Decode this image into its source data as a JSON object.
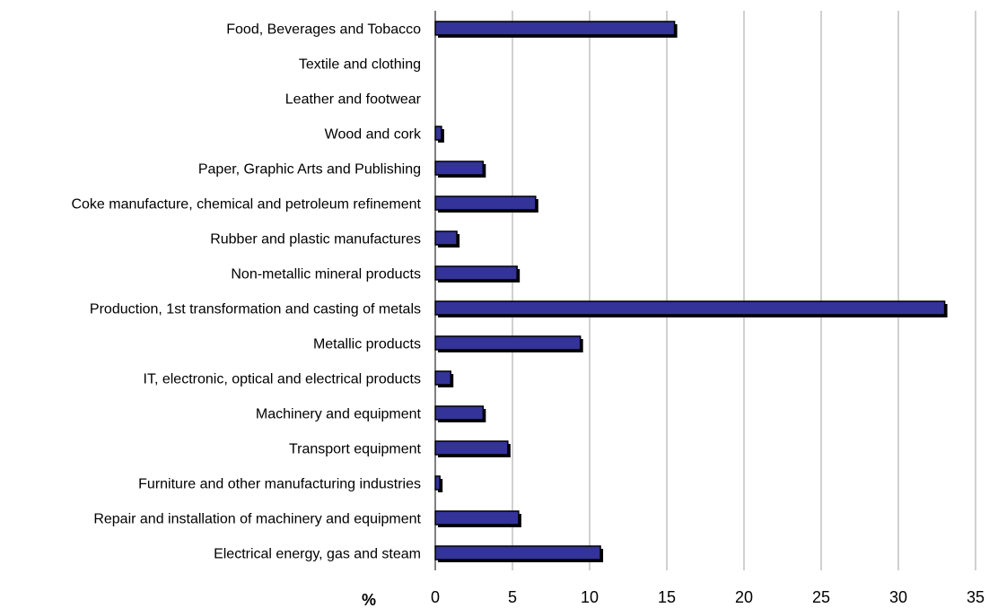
{
  "chart_data": {
    "type": "bar",
    "orientation": "horizontal",
    "categories": [
      "Food, Beverages and Tobacco",
      "Textile and clothing",
      "Leather and footwear",
      "Wood and cork",
      "Paper, Graphic Arts and Publishing",
      "Coke manufacture, chemical and petroleum refinement",
      "Rubber and plastic manufactures",
      "Non-metallic mineral products",
      "Production, 1st transformation and casting of metals",
      "Metallic products",
      "IT, electronic, optical and electrical products",
      "Machinery and equipment",
      "Transport equipment",
      "Furniture and other manufacturing industries",
      "Repair and installation of machinery and equipment",
      "Electrical energy, gas and steam"
    ],
    "values": [
      15.5,
      0,
      0,
      0.4,
      3.1,
      6.5,
      1.4,
      5.3,
      33.0,
      9.4,
      1.0,
      3.1,
      4.7,
      0.3,
      5.4,
      10.7
    ],
    "xlabel": "%",
    "xlim": [
      0,
      35
    ],
    "xticks": [
      0,
      5,
      10,
      15,
      20,
      25,
      30,
      35
    ],
    "grid": true,
    "bar_color": "#333399",
    "shadow_color": "#000000"
  }
}
